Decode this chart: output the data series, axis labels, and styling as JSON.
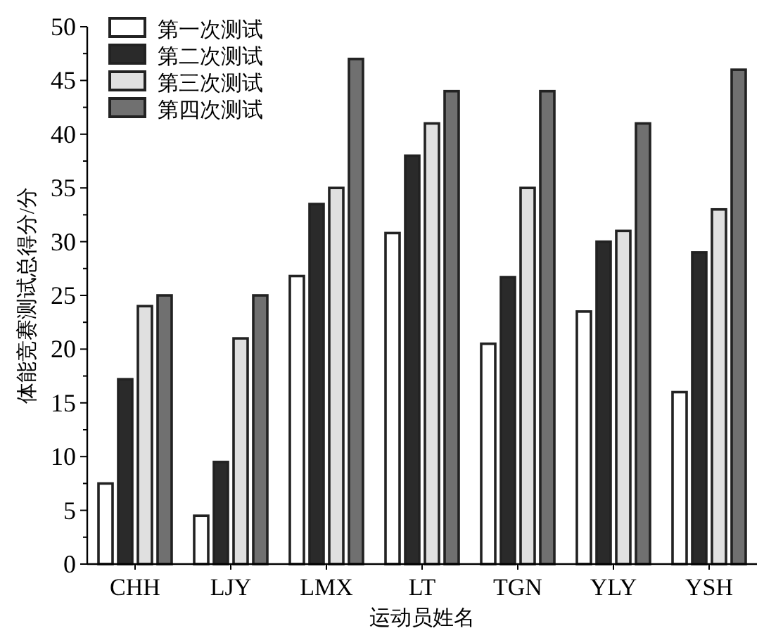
{
  "chart_data": {
    "type": "bar",
    "xlabel": "运动员姓名",
    "ylabel": "体能竞赛测试总得分/分",
    "categories": [
      "CHH",
      "LJY",
      "LMX",
      "LT",
      "TGN",
      "YLY",
      "YSH"
    ],
    "series": [
      {
        "name": "第一次测试",
        "color": "#ffffff",
        "values": [
          7.5,
          4.5,
          26.8,
          30.8,
          20.5,
          23.5,
          16
        ]
      },
      {
        "name": "第二次测试",
        "color": "#2a2a2a",
        "values": [
          17.2,
          9.5,
          33.5,
          38,
          26.7,
          30,
          29
        ]
      },
      {
        "name": "第三次测试",
        "color": "#e0e0e0",
        "values": [
          24,
          21,
          35,
          41,
          35,
          31,
          33
        ]
      },
      {
        "name": "第四次测试",
        "color": "#707070",
        "values": [
          25,
          25,
          47,
          44,
          44,
          41,
          46
        ]
      }
    ],
    "ylim": [
      0,
      50
    ],
    "yticks": [
      0,
      5,
      10,
      15,
      20,
      25,
      30,
      35,
      40,
      45,
      50
    ],
    "legend": "top left",
    "grid": false
  }
}
